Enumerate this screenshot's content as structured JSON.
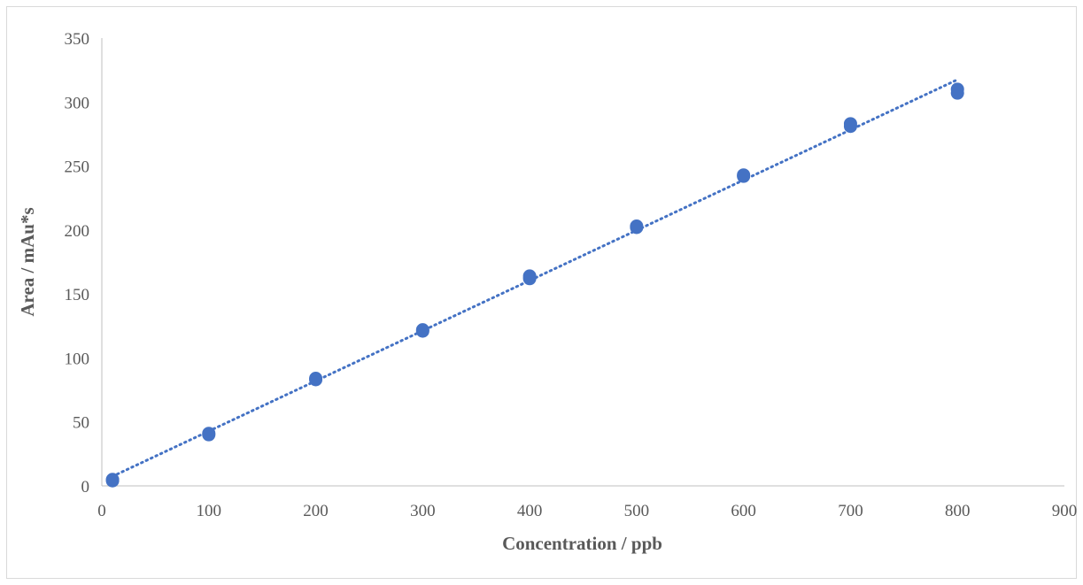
{
  "chart_data": {
    "type": "scatter",
    "title": "",
    "xlabel": "Concentration / ppb",
    "ylabel": "Area / mAu*s",
    "xlim": [
      0,
      900
    ],
    "ylim": [
      0,
      350
    ],
    "x_ticks": [
      "0",
      "100",
      "200",
      "300",
      "400",
      "500",
      "600",
      "700",
      "800",
      "900"
    ],
    "y_ticks": [
      "0",
      "50",
      "100",
      "150",
      "200",
      "250",
      "300",
      "350"
    ],
    "grid": false,
    "legend": "none",
    "series_color": "#4472c4",
    "points": [
      {
        "x": 10,
        "y": 5
      },
      {
        "x": 10,
        "y": 4
      },
      {
        "x": 100,
        "y": 40
      },
      {
        "x": 100,
        "y": 41
      },
      {
        "x": 200,
        "y": 83
      },
      {
        "x": 200,
        "y": 84
      },
      {
        "x": 300,
        "y": 122
      },
      {
        "x": 300,
        "y": 121
      },
      {
        "x": 400,
        "y": 162
      },
      {
        "x": 400,
        "y": 164
      },
      {
        "x": 500,
        "y": 203
      },
      {
        "x": 500,
        "y": 202
      },
      {
        "x": 600,
        "y": 242
      },
      {
        "x": 600,
        "y": 243
      },
      {
        "x": 700,
        "y": 281
      },
      {
        "x": 700,
        "y": 283
      },
      {
        "x": 800,
        "y": 307
      },
      {
        "x": 800,
        "y": 310
      }
    ],
    "trendline": {
      "type": "linear",
      "style": "dotted",
      "x_range": [
        10,
        800
      ]
    }
  }
}
